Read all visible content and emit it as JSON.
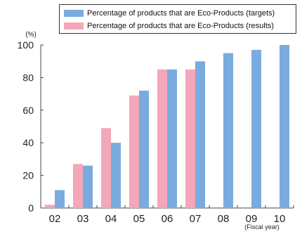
{
  "chart_data": {
    "type": "bar",
    "categories": [
      "02",
      "03",
      "04",
      "05",
      "06",
      "07",
      "08",
      "09",
      "10"
    ],
    "series": [
      {
        "name": "Percentage of products that are Eco-Products (results)",
        "color": "#f4a7b9",
        "values": [
          2,
          27,
          49,
          69,
          85,
          85,
          null,
          null,
          null
        ]
      },
      {
        "name": "Percentage of products that are Eco-Products (targets)",
        "color": "#7aabdf",
        "values": [
          11,
          26,
          40,
          72,
          85,
          90,
          95,
          97,
          100
        ]
      }
    ],
    "ylabel": "(%)",
    "xlabel": "(Fiscal year)",
    "ylim": [
      0,
      100
    ],
    "yticks": [
      0,
      20,
      40,
      60,
      80,
      100
    ],
    "grid": false,
    "legend_position": "top-right"
  },
  "legend": {
    "targets_label": "Percentage of products that are Eco-Products (targets)",
    "results_label": "Percentage of products that are Eco-Products (results)",
    "targets_color": "#7aabdf",
    "results_color": "#f4a7b9"
  },
  "axes": {
    "y_unit": "(%)",
    "x_unit": "(Fiscal year)"
  }
}
